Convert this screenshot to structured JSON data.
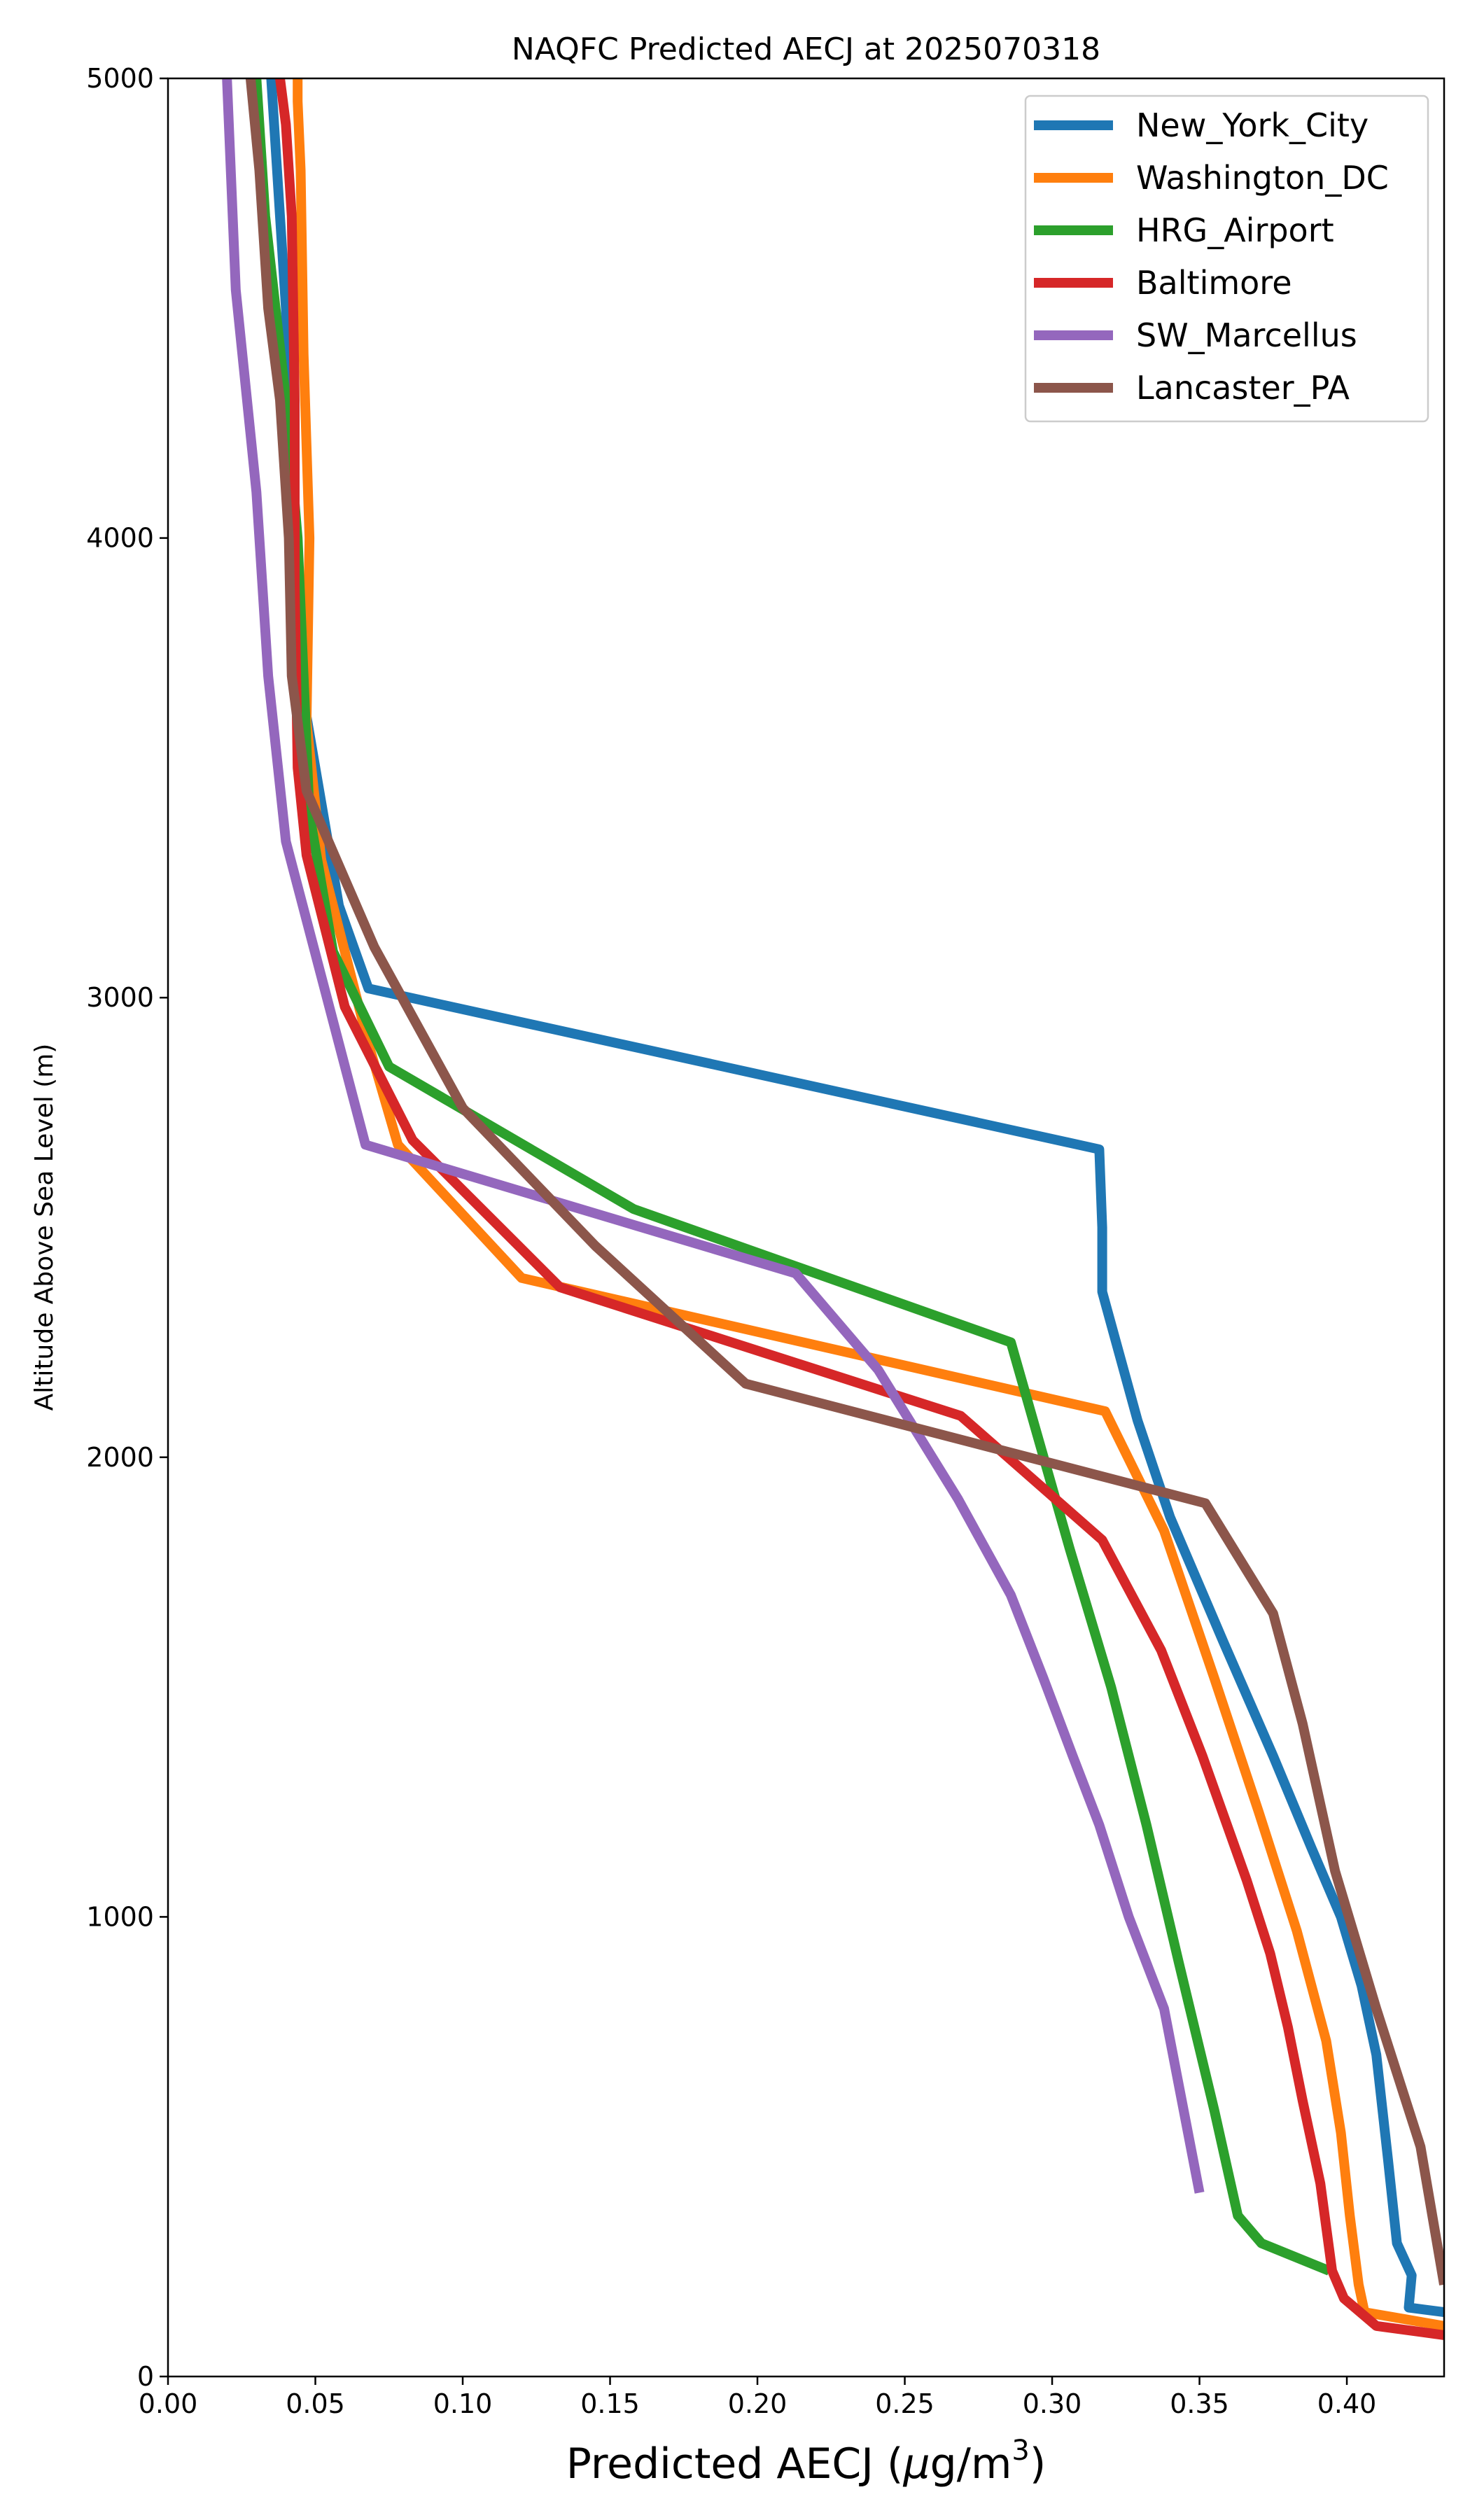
{
  "chart_data": {
    "type": "line",
    "title": "NAQFC Predicted AECJ at 2025070318",
    "xlabel": "Predicted AECJ (μg/m³)",
    "xlabel_base": "Predicted AECJ (",
    "xlabel_mu": "μ",
    "xlabel_unit": "g/m",
    "xlabel_sup": "3",
    "xlabel_close": ")",
    "ylabel": "Altitude Above Sea Level (m)",
    "xlim": [
      0.0,
      0.433
    ],
    "ylim": [
      0,
      5000
    ],
    "x_ticks": [
      0.0,
      0.05,
      0.1,
      0.15,
      0.2,
      0.25,
      0.3,
      0.35,
      0.4
    ],
    "x_tick_labels": [
      "0.00",
      "0.05",
      "0.10",
      "0.15",
      "0.20",
      "0.25",
      "0.30",
      "0.35",
      "0.40"
    ],
    "y_ticks": [
      0,
      1000,
      2000,
      3000,
      4000,
      5000
    ],
    "y_tick_labels": [
      "0",
      "1000",
      "2000",
      "3000",
      "4000",
      "5000"
    ],
    "grid": false,
    "legend_position": "top-right",
    "series": [
      {
        "name": "New_York_City",
        "color": "#1f77b4",
        "x": [
          0.433,
          0.421,
          0.422,
          0.417,
          0.414,
          0.41,
          0.405,
          0.398,
          0.388,
          0.375,
          0.358,
          0.34,
          0.329,
          0.317,
          0.317,
          0.316,
          0.068,
          0.058,
          0.042,
          0.042,
          0.04,
          0.037,
          0.035
        ],
        "y": [
          140,
          150,
          220,
          290,
          470,
          700,
          850,
          1000,
          1150,
          1350,
          1600,
          1870,
          2080,
          2360,
          2500,
          2670,
          3020,
          3200,
          3800,
          4100,
          4500,
          4800,
          5000
        ]
      },
      {
        "name": "Washington_DC",
        "color": "#ff7f0e",
        "x": [
          0.433,
          0.406,
          0.404,
          0.401,
          0.398,
          0.393,
          0.383,
          0.37,
          0.355,
          0.338,
          0.318,
          0.12,
          0.078,
          0.068,
          0.052,
          0.047,
          0.048,
          0.046,
          0.045,
          0.044,
          0.044
        ],
        "y": [
          110,
          140,
          200,
          350,
          530,
          730,
          970,
          1230,
          1520,
          1840,
          2100,
          2390,
          2680,
          2900,
          3300,
          3600,
          4000,
          4400,
          4800,
          4950,
          5000
        ]
      },
      {
        "name": "HRG_Airport",
        "color": "#2ca02c",
        "x": [
          0.394,
          0.371,
          0.363,
          0.355,
          0.343,
          0.332,
          0.32,
          0.306,
          0.286,
          0.158,
          0.075,
          0.056,
          0.048,
          0.046,
          0.044,
          0.04,
          0.033,
          0.03
        ],
        "y": [
          230,
          290,
          350,
          580,
          900,
          1200,
          1500,
          1800,
          2250,
          2540,
          2850,
          3100,
          3400,
          3700,
          4000,
          4300,
          4700,
          5000
        ]
      },
      {
        "name": "Baltimore",
        "color": "#d62728",
        "x": [
          0.433,
          0.41,
          0.399,
          0.395,
          0.391,
          0.385,
          0.38,
          0.374,
          0.366,
          0.351,
          0.337,
          0.317,
          0.269,
          0.133,
          0.083,
          0.06,
          0.047,
          0.044,
          0.043,
          0.043,
          0.042,
          0.04,
          0.038
        ],
        "y": [
          90,
          110,
          170,
          230,
          420,
          600,
          760,
          920,
          1080,
          1350,
          1580,
          1820,
          2090,
          2370,
          2690,
          2980,
          3310,
          3500,
          3900,
          4300,
          4700,
          4900,
          5000
        ]
      },
      {
        "name": "SW_Marcellus",
        "color": "#9467bd",
        "x": [
          0.35,
          0.338,
          0.326,
          0.316,
          0.307,
          0.297,
          0.286,
          0.268,
          0.241,
          0.213,
          0.067,
          0.04,
          0.034,
          0.03,
          0.023,
          0.02
        ],
        "y": [
          400,
          800,
          1000,
          1200,
          1350,
          1520,
          1700,
          1910,
          2190,
          2400,
          2680,
          3340,
          3700,
          4100,
          4540,
          5000
        ]
      },
      {
        "name": "Lancaster_PA",
        "color": "#8c564b",
        "x": [
          0.433,
          0.425,
          0.41,
          0.396,
          0.385,
          0.375,
          0.352,
          0.196,
          0.145,
          0.1,
          0.07,
          0.047,
          0.042,
          0.041,
          0.038,
          0.034,
          0.031,
          0.028
        ],
        "y": [
          200,
          500,
          800,
          1100,
          1420,
          1660,
          1900,
          2160,
          2460,
          2760,
          3110,
          3450,
          3700,
          4000,
          4300,
          4500,
          4800,
          5000
        ]
      }
    ]
  }
}
